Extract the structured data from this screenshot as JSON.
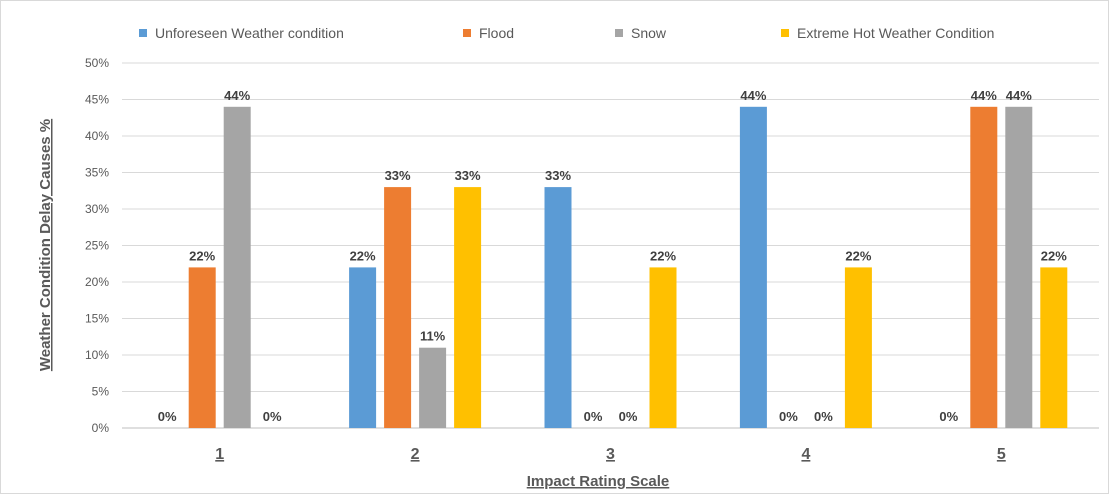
{
  "chart_data": {
    "type": "bar",
    "categories": [
      "1",
      "2",
      "3",
      "4",
      "5"
    ],
    "series": [
      {
        "name": "Unforeseen Weather condition",
        "values": [
          0,
          22,
          33,
          44,
          0
        ],
        "color": "#5B9BD5"
      },
      {
        "name": "Flood",
        "values": [
          22,
          33,
          0,
          0,
          44
        ],
        "color": "#ED7D31"
      },
      {
        "name": "Snow",
        "values": [
          44,
          11,
          0,
          0,
          44
        ],
        "color": "#A5A5A5"
      },
      {
        "name": "Extreme Hot Weather Condition",
        "values": [
          0,
          33,
          22,
          22,
          22
        ],
        "color": "#FFC000"
      }
    ],
    "xlabel": "Impact Rating Scale",
    "ylabel": "Weather Condition Delay Causes %",
    "ylim": [
      0,
      50
    ],
    "yticks": [
      0,
      5,
      10,
      15,
      20,
      25,
      30,
      35,
      40,
      45,
      50
    ],
    "y_unit": "%",
    "grid": true,
    "legend": "top"
  }
}
